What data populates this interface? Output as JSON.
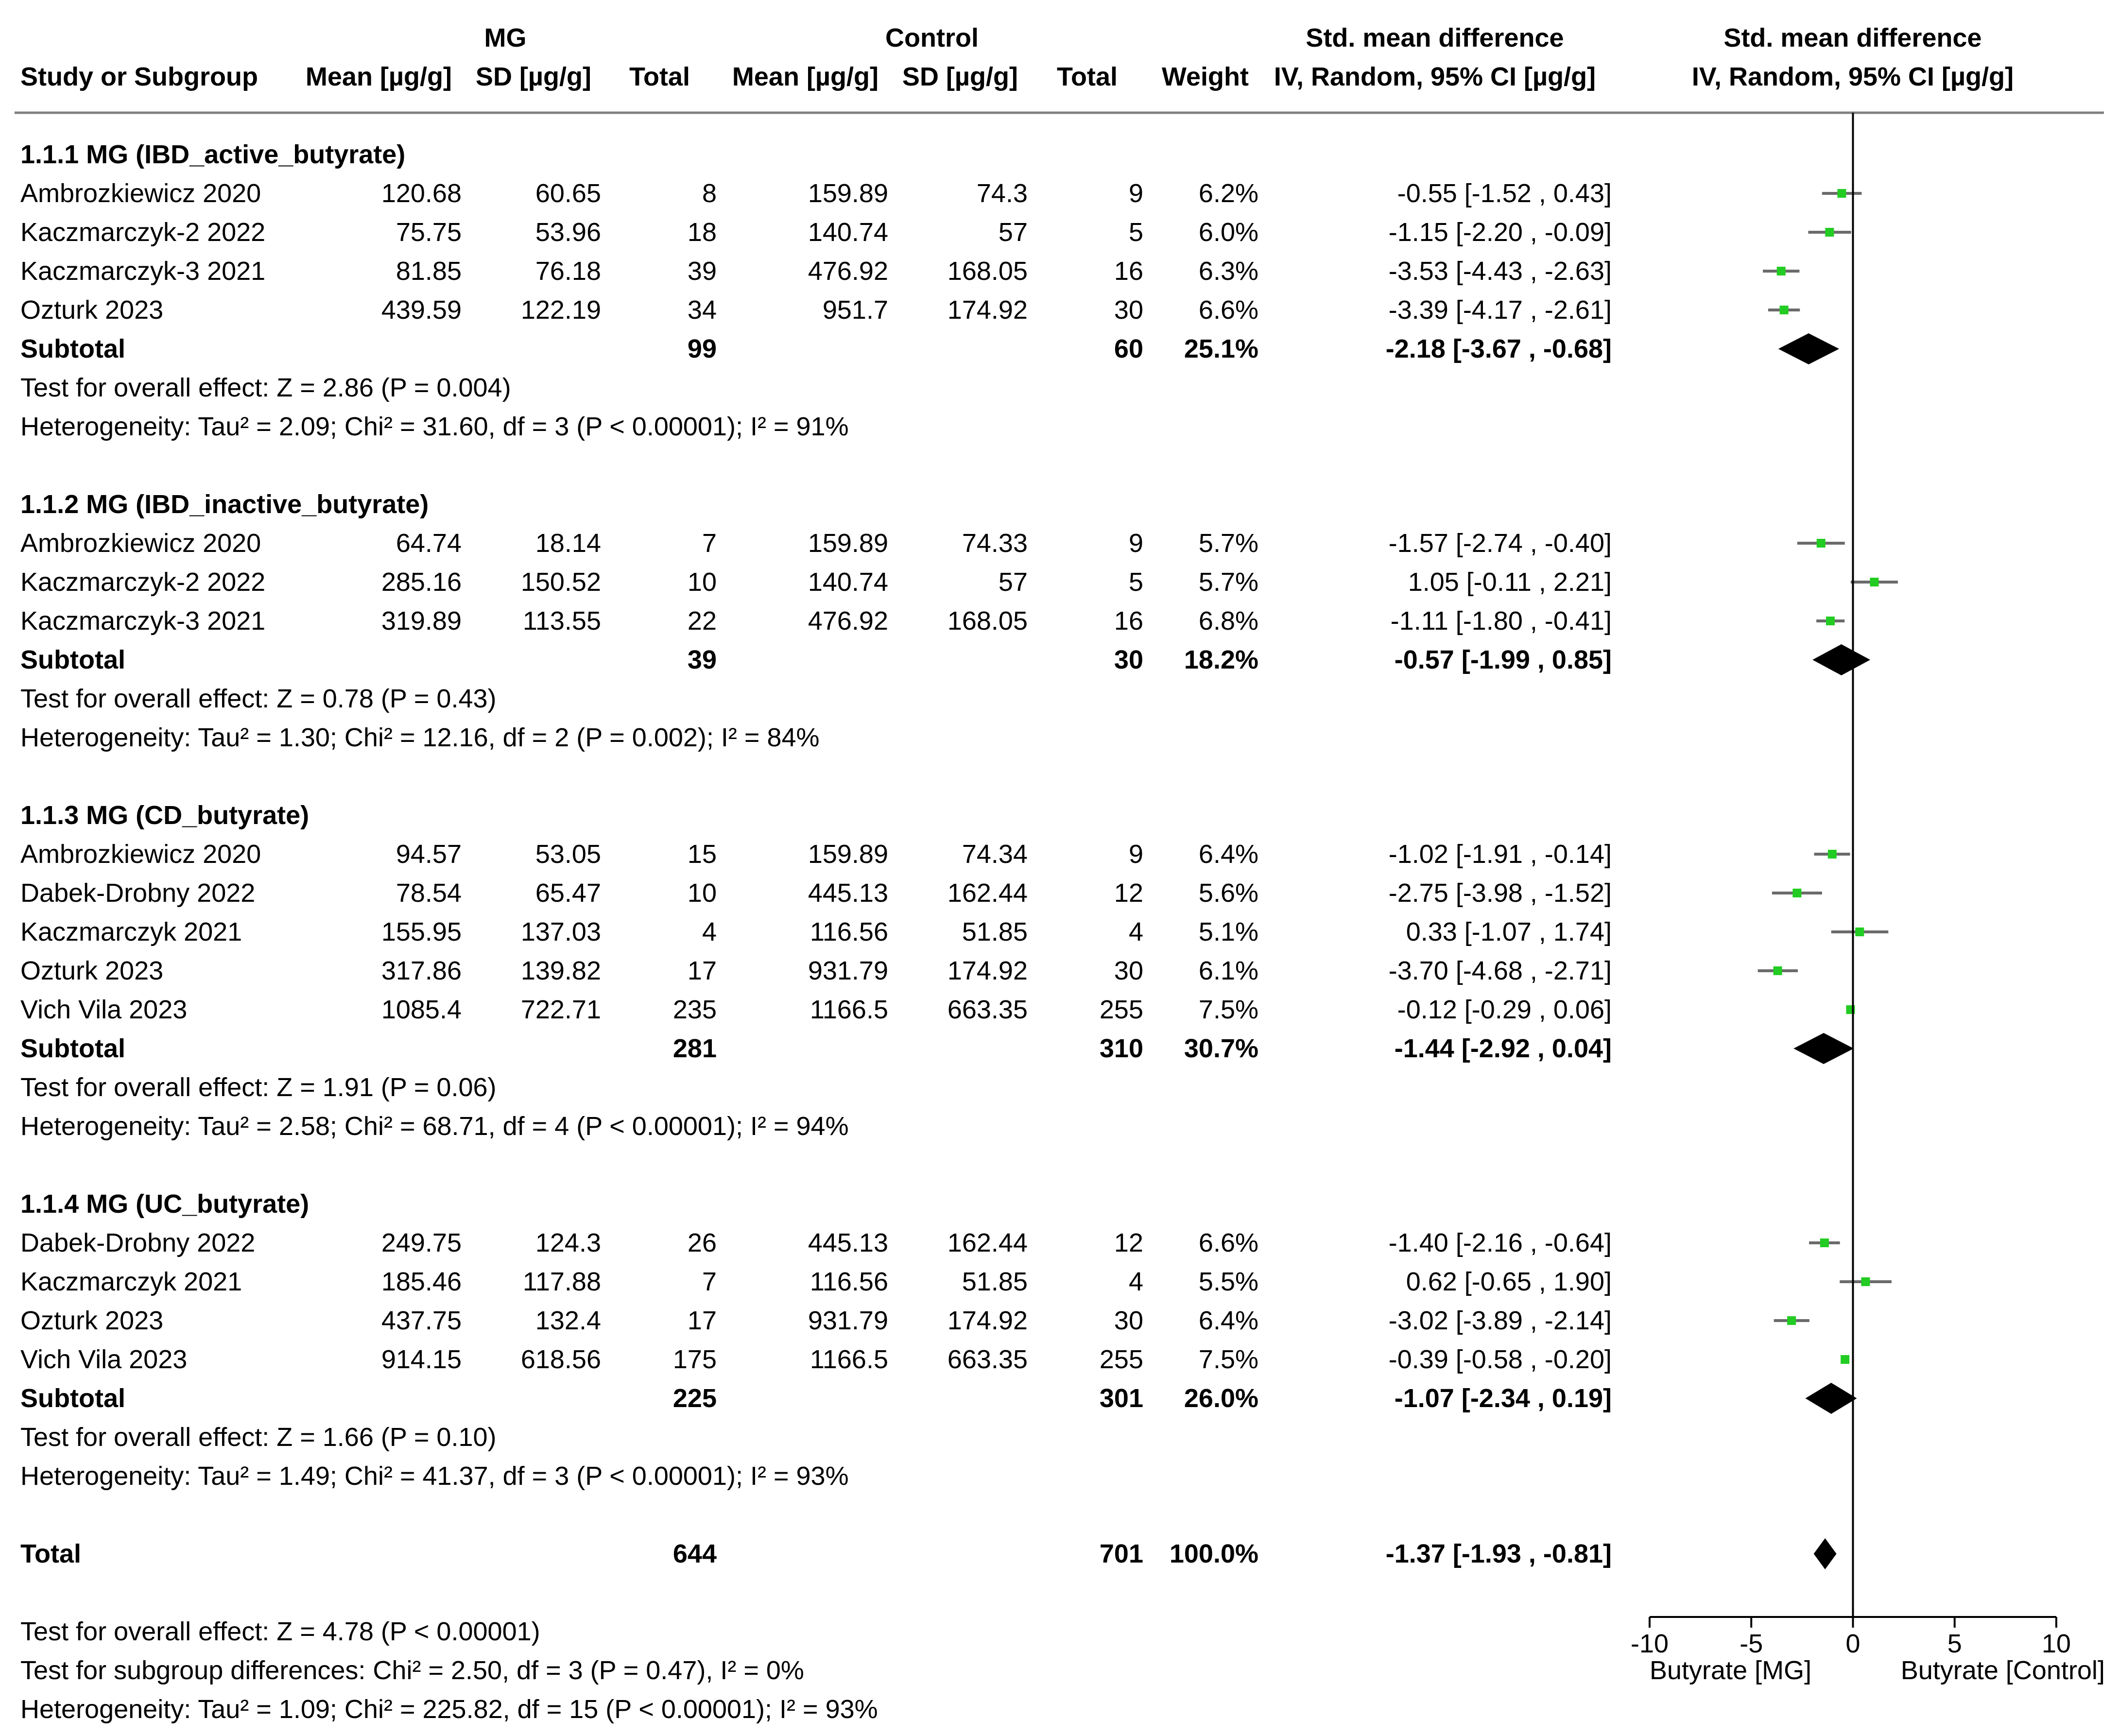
{
  "header": {
    "group1": "MG",
    "group2": "Control",
    "effect_title": "Std. mean difference",
    "effect_method": "IV, Random, 95% CI [µg/g]",
    "plot_title": "Std. mean difference",
    "plot_method": "IV, Random, 95% CI [µg/g]",
    "columns": {
      "study": "Study or Subgroup",
      "mean1": "Mean [µg/g]",
      "sd1": "SD [µg/g]",
      "total1": "Total",
      "mean2": "Mean [µg/g]",
      "sd2": "SD [µg/g]",
      "total2": "Total",
      "weight": "Weight"
    }
  },
  "colors": {
    "marker": "#22cc22",
    "whisker": "#6b6b6b",
    "rule": "#7f7f7f",
    "diamond": "#000000"
  },
  "chart_data": {
    "type": "forest",
    "x_axis": {
      "min": -10,
      "max": 10,
      "ticks": [
        -10,
        -5,
        0,
        5,
        10
      ],
      "tick_labels": [
        "-10",
        "-5",
        "0",
        "5",
        "10"
      ]
    },
    "favours_left": "Butyrate [MG]",
    "favours_right": "Butyrate [Control]",
    "subgroups": [
      {
        "title": "1.1.1 MG (IBD_active_butyrate)",
        "studies": [
          {
            "name": "Ambrozkiewicz 2020",
            "mean1": "120.68",
            "sd1": "60.65",
            "n1": "8",
            "mean2": "159.89",
            "sd2": "74.3",
            "n2": "9",
            "weight": "6.2%",
            "ci_text": "-0.55 [-1.52 , 0.43]",
            "est": -0.55,
            "lo": -1.52,
            "hi": 0.43
          },
          {
            "name": "Kaczmarczyk-2 2022",
            "mean1": "75.75",
            "sd1": "53.96",
            "n1": "18",
            "mean2": "140.74",
            "sd2": "57",
            "n2": "5",
            "weight": "6.0%",
            "ci_text": "-1.15 [-2.20 , -0.09]",
            "est": -1.15,
            "lo": -2.2,
            "hi": -0.09
          },
          {
            "name": "Kaczmarczyk-3 2021",
            "mean1": "81.85",
            "sd1": "76.18",
            "n1": "39",
            "mean2": "476.92",
            "sd2": "168.05",
            "n2": "16",
            "weight": "6.3%",
            "ci_text": "-3.53 [-4.43 , -2.63]",
            "est": -3.53,
            "lo": -4.43,
            "hi": -2.63
          },
          {
            "name": "Ozturk 2023",
            "mean1": "439.59",
            "sd1": "122.19",
            "n1": "34",
            "mean2": "951.7",
            "sd2": "174.92",
            "n2": "30",
            "weight": "6.6%",
            "ci_text": "-3.39 [-4.17 , -2.61]",
            "est": -3.39,
            "lo": -4.17,
            "hi": -2.61
          }
        ],
        "subtotal": {
          "label": "Subtotal",
          "n1": "99",
          "n2": "60",
          "weight": "25.1%",
          "ci_text": "-2.18 [-3.67 , -0.68]",
          "est": -2.18,
          "lo": -3.67,
          "hi": -0.68
        },
        "effect_test": "Test for overall effect: Z = 2.86 (P = 0.004)",
        "heterogeneity": "Heterogeneity: Tau² = 2.09; Chi² = 31.60, df = 3 (P < 0.00001); I² = 91%"
      },
      {
        "title": "1.1.2 MG (IBD_inactive_butyrate)",
        "studies": [
          {
            "name": "Ambrozkiewicz 2020",
            "mean1": "64.74",
            "sd1": "18.14",
            "n1": "7",
            "mean2": "159.89",
            "sd2": "74.33",
            "n2": "9",
            "weight": "5.7%",
            "ci_text": "-1.57 [-2.74 , -0.40]",
            "est": -1.57,
            "lo": -2.74,
            "hi": -0.4
          },
          {
            "name": "Kaczmarczyk-2 2022",
            "mean1": "285.16",
            "sd1": "150.52",
            "n1": "10",
            "mean2": "140.74",
            "sd2": "57",
            "n2": "5",
            "weight": "5.7%",
            "ci_text": "1.05 [-0.11 , 2.21]",
            "est": 1.05,
            "lo": -0.11,
            "hi": 2.21
          },
          {
            "name": "Kaczmarczyk-3 2021",
            "mean1": "319.89",
            "sd1": "113.55",
            "n1": "22",
            "mean2": "476.92",
            "sd2": "168.05",
            "n2": "16",
            "weight": "6.8%",
            "ci_text": "-1.11 [-1.80 , -0.41]",
            "est": -1.11,
            "lo": -1.8,
            "hi": -0.41
          }
        ],
        "subtotal": {
          "label": "Subtotal",
          "n1": "39",
          "n2": "30",
          "weight": "18.2%",
          "ci_text": "-0.57 [-1.99 , 0.85]",
          "est": -0.57,
          "lo": -1.99,
          "hi": 0.85
        },
        "effect_test": "Test for overall effect: Z = 0.78 (P = 0.43)",
        "heterogeneity": "Heterogeneity: Tau² = 1.30; Chi² = 12.16, df = 2 (P = 0.002); I² = 84%"
      },
      {
        "title": "1.1.3 MG (CD_butyrate)",
        "studies": [
          {
            "name": "Ambrozkiewicz 2020",
            "mean1": "94.57",
            "sd1": "53.05",
            "n1": "15",
            "mean2": "159.89",
            "sd2": "74.34",
            "n2": "9",
            "weight": "6.4%",
            "ci_text": "-1.02 [-1.91 , -0.14]",
            "est": -1.02,
            "lo": -1.91,
            "hi": -0.14
          },
          {
            "name": "Dabek-Drobny 2022",
            "mean1": "78.54",
            "sd1": "65.47",
            "n1": "10",
            "mean2": "445.13",
            "sd2": "162.44",
            "n2": "12",
            "weight": "5.6%",
            "ci_text": "-2.75 [-3.98 , -1.52]",
            "est": -2.75,
            "lo": -3.98,
            "hi": -1.52
          },
          {
            "name": "Kaczmarczyk 2021",
            "mean1": "155.95",
            "sd1": "137.03",
            "n1": "4",
            "mean2": "116.56",
            "sd2": "51.85",
            "n2": "4",
            "weight": "5.1%",
            "ci_text": "0.33 [-1.07 , 1.74]",
            "est": 0.33,
            "lo": -1.07,
            "hi": 1.74
          },
          {
            "name": "Ozturk 2023",
            "mean1": "317.86",
            "sd1": "139.82",
            "n1": "17",
            "mean2": "931.79",
            "sd2": "174.92",
            "n2": "30",
            "weight": "6.1%",
            "ci_text": "-3.70 [-4.68 , -2.71]",
            "est": -3.7,
            "lo": -4.68,
            "hi": -2.71
          },
          {
            "name": "Vich Vila 2023",
            "mean1": "1085.4",
            "sd1": "722.71",
            "n1": "235",
            "mean2": "1166.5",
            "sd2": "663.35",
            "n2": "255",
            "weight": "7.5%",
            "ci_text": "-0.12 [-0.29 , 0.06]",
            "est": -0.12,
            "lo": -0.29,
            "hi": 0.06
          }
        ],
        "subtotal": {
          "label": "Subtotal",
          "n1": "281",
          "n2": "310",
          "weight": "30.7%",
          "ci_text": "-1.44 [-2.92 , 0.04]",
          "est": -1.44,
          "lo": -2.92,
          "hi": 0.04
        },
        "effect_test": "Test for overall effect: Z = 1.91 (P = 0.06)",
        "heterogeneity": "Heterogeneity: Tau² = 2.58; Chi² = 68.71, df = 4 (P < 0.00001); I² = 94%"
      },
      {
        "title": "1.1.4 MG (UC_butyrate)",
        "studies": [
          {
            "name": "Dabek-Drobny 2022",
            "mean1": "249.75",
            "sd1": "124.3",
            "n1": "26",
            "mean2": "445.13",
            "sd2": "162.44",
            "n2": "12",
            "weight": "6.6%",
            "ci_text": "-1.40 [-2.16 , -0.64]",
            "est": -1.4,
            "lo": -2.16,
            "hi": -0.64
          },
          {
            "name": "Kaczmarczyk 2021",
            "mean1": "185.46",
            "sd1": "117.88",
            "n1": "7",
            "mean2": "116.56",
            "sd2": "51.85",
            "n2": "4",
            "weight": "5.5%",
            "ci_text": "0.62 [-0.65 , 1.90]",
            "est": 0.62,
            "lo": -0.65,
            "hi": 1.9
          },
          {
            "name": "Ozturk 2023",
            "mean1": "437.75",
            "sd1": "132.4",
            "n1": "17",
            "mean2": "931.79",
            "sd2": "174.92",
            "n2": "30",
            "weight": "6.4%",
            "ci_text": "-3.02 [-3.89 , -2.14]",
            "est": -3.02,
            "lo": -3.89,
            "hi": -2.14
          },
          {
            "name": "Vich Vila 2023",
            "mean1": "914.15",
            "sd1": "618.56",
            "n1": "175",
            "mean2": "1166.5",
            "sd2": "663.35",
            "n2": "255",
            "weight": "7.5%",
            "ci_text": "-0.39 [-0.58 , -0.20]",
            "est": -0.39,
            "lo": -0.58,
            "hi": -0.2
          }
        ],
        "subtotal": {
          "label": "Subtotal",
          "n1": "225",
          "n2": "301",
          "weight": "26.0%",
          "ci_text": "-1.07 [-2.34 , 0.19]",
          "est": -1.07,
          "lo": -2.34,
          "hi": 0.19
        },
        "effect_test": "Test for overall effect: Z = 1.66 (P = 0.10)",
        "heterogeneity": "Heterogeneity: Tau² = 1.49; Chi² = 41.37, df = 3 (P < 0.00001); I² = 93%"
      }
    ],
    "total": {
      "label": "Total",
      "n1": "644",
      "n2": "701",
      "weight": "100.0%",
      "ci_text": "-1.37 [-1.93 , -0.81]",
      "est": -1.37,
      "lo": -1.93,
      "hi": -0.81
    },
    "footer": [
      "Test for overall effect: Z = 4.78 (P < 0.00001)",
      "Test for subgroup differences: Chi² = 2.50, df = 3 (P = 0.47), I² = 0%",
      "Heterogeneity: Tau² = 1.09; Chi² = 225.82, df = 15 (P < 0.00001); I² = 93%"
    ]
  }
}
